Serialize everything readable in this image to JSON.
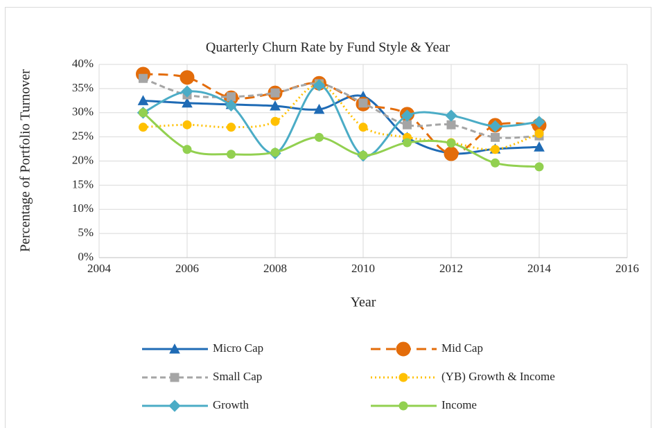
{
  "chart_data": {
    "type": "line",
    "title": "Quarterly Churn Rate by Fund Style & Year",
    "x_label": "Year",
    "y_label": "Percentage of Portfolio Turnover",
    "x": [
      2005,
      2006,
      2007,
      2008,
      2009,
      2010,
      2011,
      2012,
      2013,
      2014
    ],
    "xlim": [
      2004,
      2016
    ],
    "xticks": [
      2004,
      2006,
      2008,
      2010,
      2012,
      2014,
      2016
    ],
    "ylim": [
      0,
      40
    ],
    "yticks": [
      {
        "value": 0,
        "label": "0%"
      },
      {
        "value": 5,
        "label": "5%"
      },
      {
        "value": 10,
        "label": "10%"
      },
      {
        "value": 15,
        "label": "15%"
      },
      {
        "value": 20,
        "label": "20%"
      },
      {
        "value": 25,
        "label": "25%"
      },
      {
        "value": 30,
        "label": "30%"
      },
      {
        "value": 35,
        "label": "35%"
      },
      {
        "value": 40,
        "label": "40%"
      }
    ],
    "grid": true,
    "smooth": true,
    "legend": "bottom",
    "series": [
      {
        "name": "Micro Cap",
        "color": "#1f6bb5",
        "line_style": "solid",
        "marker": "triangle",
        "values": [
          32.5,
          32.0,
          31.7,
          31.4,
          30.7,
          33.4,
          24.9,
          21.6,
          22.5,
          22.9
        ]
      },
      {
        "name": "Mid Cap",
        "color": "#e36c0a",
        "line_style": "dash",
        "marker": "circle-large",
        "values": [
          38.0,
          37.3,
          33.1,
          34.1,
          36.1,
          31.8,
          29.7,
          21.5,
          27.4,
          27.4
        ]
      },
      {
        "name": "Small Cap",
        "color": "#a5a5a5",
        "line_style": "dash-short",
        "marker": "square",
        "values": [
          37.1,
          33.7,
          33.3,
          34.1,
          36.0,
          32.0,
          27.5,
          27.5,
          24.9,
          25.2
        ]
      },
      {
        "name": "(YB) Growth & Income",
        "color": "#ffc000",
        "line_style": "dot",
        "marker": "circle",
        "values": [
          27.0,
          27.5,
          27.0,
          28.2,
          35.8,
          27.0,
          24.9,
          23.8,
          22.4,
          25.7
        ]
      },
      {
        "name": "Growth",
        "color": "#4bacc6",
        "line_style": "solid",
        "marker": "diamond",
        "values": [
          30.0,
          34.4,
          31.5,
          21.6,
          35.7,
          21.1,
          29.4,
          29.4,
          27.2,
          28.1
        ]
      },
      {
        "name": "Income",
        "color": "#92d050",
        "line_style": "solid",
        "marker": "circle",
        "values": [
          30.0,
          22.4,
          21.4,
          21.8,
          24.9,
          21.2,
          23.8,
          23.7,
          19.6,
          18.8
        ]
      }
    ]
  }
}
